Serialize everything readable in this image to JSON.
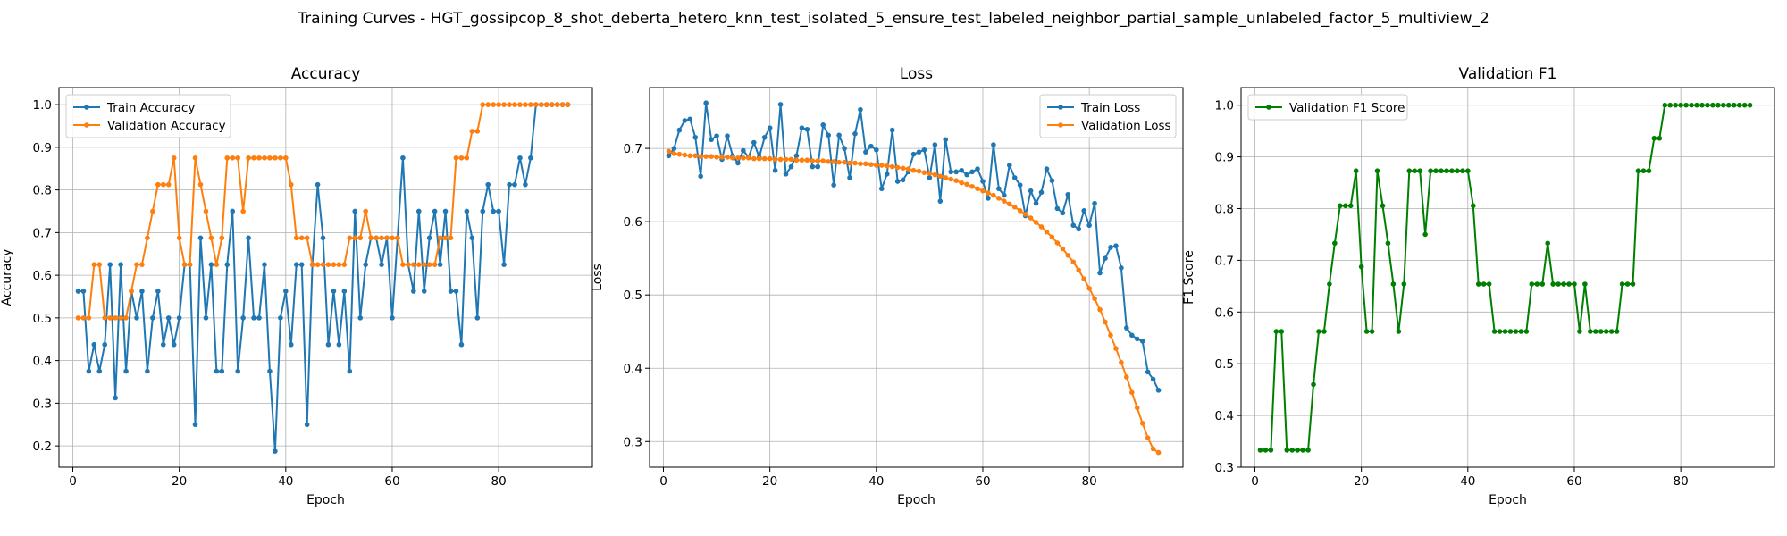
{
  "figure": {
    "title": "Training Curves - HGT_gossipcop_8_shot_deberta_hetero_knn_test_isolated_5_ensure_test_labeled_neighbor_partial_sample_unlabeled_factor_5_multiview_2"
  },
  "chart_data": [
    {
      "type": "line",
      "title": "Accuracy",
      "xlabel": "Epoch",
      "ylabel": "Accuracy",
      "xlim": [
        -2.6,
        97.6
      ],
      "ylim": [
        0.15,
        1.04
      ],
      "xticks": [
        0,
        20,
        40,
        60,
        80
      ],
      "xtick_labels": [
        "0",
        "20",
        "40",
        "60",
        "80"
      ],
      "yticks": [
        0.2,
        0.3,
        0.4,
        0.5,
        0.6,
        0.7,
        0.8,
        0.9,
        1.0
      ],
      "ytick_labels": [
        "0.2",
        "0.3",
        "0.4",
        "0.5",
        "0.6",
        "0.7",
        "0.8",
        "0.9",
        "1.0"
      ],
      "grid": true,
      "legend_position": "upper-left",
      "series": [
        {
          "name": "Train Accuracy",
          "color": "#1f77b4",
          "x": [
            1,
            2,
            3,
            4,
            5,
            6,
            7,
            8,
            9,
            10,
            11,
            12,
            13,
            14,
            15,
            16,
            17,
            18,
            19,
            20,
            21,
            22,
            23,
            24,
            25,
            26,
            27,
            28,
            29,
            30,
            31,
            32,
            33,
            34,
            35,
            36,
            37,
            38,
            39,
            40,
            41,
            42,
            43,
            44,
            45,
            46,
            47,
            48,
            49,
            50,
            51,
            52,
            53,
            54,
            55,
            56,
            57,
            58,
            59,
            60,
            61,
            62,
            63,
            64,
            65,
            66,
            67,
            68,
            69,
            70,
            71,
            72,
            73,
            74,
            75,
            76,
            77,
            78,
            79,
            80,
            81,
            82,
            83,
            84,
            85,
            86,
            87,
            88,
            89,
            90,
            91,
            92,
            93
          ],
          "y": [
            0.5625,
            0.5625,
            0.375,
            0.4375,
            0.375,
            0.4375,
            0.625,
            0.3125,
            0.625,
            0.375,
            0.5625,
            0.5,
            0.5625,
            0.375,
            0.5,
            0.5625,
            0.4375,
            0.5,
            0.4375,
            0.5,
            0.625,
            0.625,
            0.25,
            0.6875,
            0.5,
            0.625,
            0.375,
            0.375,
            0.625,
            0.75,
            0.375,
            0.5,
            0.6875,
            0.5,
            0.5,
            0.625,
            0.375,
            0.1875,
            0.5,
            0.5625,
            0.4375,
            0.625,
            0.625,
            0.25,
            0.625,
            0.8125,
            0.6875,
            0.4375,
            0.5625,
            0.4375,
            0.5625,
            0.375,
            0.75,
            0.5,
            0.625,
            0.6875,
            0.6875,
            0.625,
            0.6875,
            0.5,
            0.6875,
            0.875,
            0.625,
            0.5625,
            0.75,
            0.5625,
            0.6875,
            0.75,
            0.625,
            0.75,
            0.5625,
            0.5625,
            0.4375,
            0.75,
            0.6875,
            0.5,
            0.75,
            0.8125,
            0.75,
            0.75,
            0.625,
            0.8125,
            0.8125,
            0.875,
            0.8125,
            0.875,
            1.0,
            1.0,
            1.0,
            1.0,
            1.0,
            1.0,
            1.0
          ]
        },
        {
          "name": "Validation Accuracy",
          "color": "#ff7f0e",
          "x": [
            1,
            2,
            3,
            4,
            5,
            6,
            7,
            8,
            9,
            10,
            11,
            12,
            13,
            14,
            15,
            16,
            17,
            18,
            19,
            20,
            21,
            22,
            23,
            24,
            25,
            26,
            27,
            28,
            29,
            30,
            31,
            32,
            33,
            34,
            35,
            36,
            37,
            38,
            39,
            40,
            41,
            42,
            43,
            44,
            45,
            46,
            47,
            48,
            49,
            50,
            51,
            52,
            53,
            54,
            55,
            56,
            57,
            58,
            59,
            60,
            61,
            62,
            63,
            64,
            65,
            66,
            67,
            68,
            69,
            70,
            71,
            72,
            73,
            74,
            75,
            76,
            77,
            78,
            79,
            80,
            81,
            82,
            83,
            84,
            85,
            86,
            87,
            88,
            89,
            90,
            91,
            92,
            93
          ],
          "y": [
            0.5,
            0.5,
            0.5,
            0.625,
            0.625,
            0.5,
            0.5,
            0.5,
            0.5,
            0.5,
            0.5625,
            0.625,
            0.625,
            0.6875,
            0.75,
            0.8125,
            0.8125,
            0.8125,
            0.875,
            0.6875,
            0.625,
            0.625,
            0.875,
            0.8125,
            0.75,
            0.6875,
            0.625,
            0.6875,
            0.875,
            0.875,
            0.875,
            0.75,
            0.875,
            0.875,
            0.875,
            0.875,
            0.875,
            0.875,
            0.875,
            0.875,
            0.8125,
            0.6875,
            0.6875,
            0.6875,
            0.625,
            0.625,
            0.625,
            0.625,
            0.625,
            0.625,
            0.625,
            0.6875,
            0.6875,
            0.6875,
            0.75,
            0.6875,
            0.6875,
            0.6875,
            0.6875,
            0.6875,
            0.6875,
            0.625,
            0.625,
            0.625,
            0.625,
            0.625,
            0.625,
            0.625,
            0.6875,
            0.6875,
            0.6875,
            0.875,
            0.875,
            0.875,
            0.9375,
            0.9375,
            1.0,
            1.0,
            1.0,
            1.0,
            1.0,
            1.0,
            1.0,
            1.0,
            1.0,
            1.0,
            1.0,
            1.0,
            1.0,
            1.0,
            1.0,
            1.0,
            1.0
          ]
        }
      ]
    },
    {
      "type": "line",
      "title": "Loss",
      "xlabel": "Epoch",
      "ylabel": "Loss",
      "xlim": [
        -2.6,
        97.6
      ],
      "ylim": [
        0.265,
        0.783
      ],
      "xticks": [
        0,
        20,
        40,
        60,
        80
      ],
      "xtick_labels": [
        "0",
        "20",
        "40",
        "60",
        "80"
      ],
      "yticks": [
        0.3,
        0.4,
        0.5,
        0.6,
        0.7
      ],
      "ytick_labels": [
        "0.3",
        "0.4",
        "0.5",
        "0.6",
        "0.7"
      ],
      "grid": true,
      "legend_position": "upper-right",
      "series": [
        {
          "name": "Train Loss",
          "color": "#1f77b4",
          "x": [
            1,
            2,
            3,
            4,
            5,
            6,
            7,
            8,
            9,
            10,
            11,
            12,
            13,
            14,
            15,
            16,
            17,
            18,
            19,
            20,
            21,
            22,
            23,
            24,
            25,
            26,
            27,
            28,
            29,
            30,
            31,
            32,
            33,
            34,
            35,
            36,
            37,
            38,
            39,
            40,
            41,
            42,
            43,
            44,
            45,
            46,
            47,
            48,
            49,
            50,
            51,
            52,
            53,
            54,
            55,
            56,
            57,
            58,
            59,
            60,
            61,
            62,
            63,
            64,
            65,
            66,
            67,
            68,
            69,
            70,
            71,
            72,
            73,
            74,
            75,
            76,
            77,
            78,
            79,
            80,
            81,
            82,
            83,
            84,
            85,
            86,
            87,
            88,
            89,
            90,
            91,
            92,
            93
          ],
          "y": [
            0.69,
            0.7,
            0.725,
            0.738,
            0.74,
            0.715,
            0.662,
            0.762,
            0.712,
            0.717,
            0.685,
            0.717,
            0.69,
            0.68,
            0.697,
            0.688,
            0.708,
            0.688,
            0.715,
            0.728,
            0.67,
            0.76,
            0.665,
            0.675,
            0.69,
            0.728,
            0.726,
            0.675,
            0.675,
            0.732,
            0.718,
            0.65,
            0.718,
            0.7,
            0.66,
            0.72,
            0.753,
            0.695,
            0.703,
            0.698,
            0.645,
            0.665,
            0.725,
            0.655,
            0.657,
            0.668,
            0.692,
            0.695,
            0.698,
            0.66,
            0.705,
            0.628,
            0.712,
            0.668,
            0.668,
            0.67,
            0.664,
            0.668,
            0.672,
            0.655,
            0.632,
            0.705,
            0.645,
            0.636,
            0.677,
            0.66,
            0.65,
            0.608,
            0.642,
            0.625,
            0.64,
            0.672,
            0.656,
            0.618,
            0.612,
            0.637,
            0.595,
            0.59,
            0.615,
            0.595,
            0.625,
            0.53,
            0.55,
            0.565,
            0.567,
            0.537,
            0.455,
            0.445,
            0.44,
            0.437,
            0.395,
            0.385,
            0.37
          ]
        },
        {
          "name": "Validation Loss",
          "color": "#ff7f0e",
          "x": [
            1,
            2,
            3,
            4,
            5,
            6,
            7,
            8,
            9,
            10,
            11,
            12,
            13,
            14,
            15,
            16,
            17,
            18,
            19,
            20,
            21,
            22,
            23,
            24,
            25,
            26,
            27,
            28,
            29,
            30,
            31,
            32,
            33,
            34,
            35,
            36,
            37,
            38,
            39,
            40,
            41,
            42,
            43,
            44,
            45,
            46,
            47,
            48,
            49,
            50,
            51,
            52,
            53,
            54,
            55,
            56,
            57,
            58,
            59,
            60,
            61,
            62,
            63,
            64,
            65,
            66,
            67,
            68,
            69,
            70,
            71,
            72,
            73,
            74,
            75,
            76,
            77,
            78,
            79,
            80,
            81,
            82,
            83,
            84,
            85,
            86,
            87,
            88,
            89,
            90,
            91,
            92,
            93
          ],
          "y": [
            0.696,
            0.693,
            0.692,
            0.691,
            0.69,
            0.69,
            0.689,
            0.689,
            0.689,
            0.688,
            0.688,
            0.688,
            0.687,
            0.687,
            0.687,
            0.687,
            0.686,
            0.686,
            0.686,
            0.686,
            0.685,
            0.685,
            0.685,
            0.685,
            0.684,
            0.684,
            0.684,
            0.683,
            0.683,
            0.683,
            0.682,
            0.682,
            0.681,
            0.681,
            0.68,
            0.68,
            0.679,
            0.679,
            0.678,
            0.677,
            0.677,
            0.676,
            0.675,
            0.674,
            0.673,
            0.672,
            0.67,
            0.669,
            0.667,
            0.666,
            0.664,
            0.662,
            0.66,
            0.658,
            0.656,
            0.653,
            0.651,
            0.648,
            0.645,
            0.642,
            0.639,
            0.636,
            0.632,
            0.628,
            0.624,
            0.62,
            0.615,
            0.61,
            0.605,
            0.599,
            0.593,
            0.586,
            0.579,
            0.571,
            0.563,
            0.554,
            0.545,
            0.534,
            0.522,
            0.509,
            0.495,
            0.48,
            0.463,
            0.445,
            0.427,
            0.408,
            0.388,
            0.367,
            0.346,
            0.325,
            0.305,
            0.29,
            0.285
          ]
        }
      ]
    },
    {
      "type": "line",
      "title": "Validation F1",
      "xlabel": "Epoch",
      "ylabel": "F1 Score",
      "xlim": [
        -2.6,
        97.6
      ],
      "ylim": [
        0.3,
        1.034
      ],
      "xticks": [
        0,
        20,
        40,
        60,
        80
      ],
      "xtick_labels": [
        "0",
        "20",
        "40",
        "60",
        "80"
      ],
      "yticks": [
        0.3,
        0.4,
        0.5,
        0.6,
        0.7,
        0.8,
        0.9,
        1.0
      ],
      "ytick_labels": [
        "0.3",
        "0.4",
        "0.5",
        "0.6",
        "0.7",
        "0.8",
        "0.9",
        "1.0"
      ],
      "grid": true,
      "legend_position": "upper-left",
      "series": [
        {
          "name": "Validation F1 Score",
          "color": "#008000",
          "x": [
            1,
            2,
            3,
            4,
            5,
            6,
            7,
            8,
            9,
            10,
            11,
            12,
            13,
            14,
            15,
            16,
            17,
            18,
            19,
            20,
            21,
            22,
            23,
            24,
            25,
            26,
            27,
            28,
            29,
            30,
            31,
            32,
            33,
            34,
            35,
            36,
            37,
            38,
            39,
            40,
            41,
            42,
            43,
            44,
            45,
            46,
            47,
            48,
            49,
            50,
            51,
            52,
            53,
            54,
            55,
            56,
            57,
            58,
            59,
            60,
            61,
            62,
            63,
            64,
            65,
            66,
            67,
            68,
            69,
            70,
            71,
            72,
            73,
            74,
            75,
            76,
            77,
            78,
            79,
            80,
            81,
            82,
            83,
            84,
            85,
            86,
            87,
            88,
            89,
            90,
            91,
            92,
            93
          ],
          "y": [
            0.333,
            0.333,
            0.333,
            0.5625,
            0.5625,
            0.333,
            0.333,
            0.333,
            0.333,
            0.333,
            0.46,
            0.5625,
            0.5625,
            0.654,
            0.733,
            0.8055,
            0.8055,
            0.8055,
            0.873,
            0.6875,
            0.5625,
            0.5625,
            0.873,
            0.8055,
            0.733,
            0.654,
            0.5625,
            0.654,
            0.873,
            0.873,
            0.873,
            0.75,
            0.873,
            0.873,
            0.873,
            0.873,
            0.873,
            0.873,
            0.873,
            0.873,
            0.8055,
            0.654,
            0.654,
            0.654,
            0.5625,
            0.5625,
            0.5625,
            0.5625,
            0.5625,
            0.5625,
            0.5625,
            0.654,
            0.654,
            0.654,
            0.733,
            0.654,
            0.654,
            0.654,
            0.654,
            0.654,
            0.5625,
            0.654,
            0.5625,
            0.5625,
            0.5625,
            0.5625,
            0.5625,
            0.5625,
            0.654,
            0.654,
            0.654,
            0.873,
            0.873,
            0.873,
            0.936,
            0.936,
            1.0,
            1.0,
            1.0,
            1.0,
            1.0,
            1.0,
            1.0,
            1.0,
            1.0,
            1.0,
            1.0,
            1.0,
            1.0,
            1.0,
            1.0,
            1.0,
            1.0
          ]
        }
      ]
    }
  ]
}
